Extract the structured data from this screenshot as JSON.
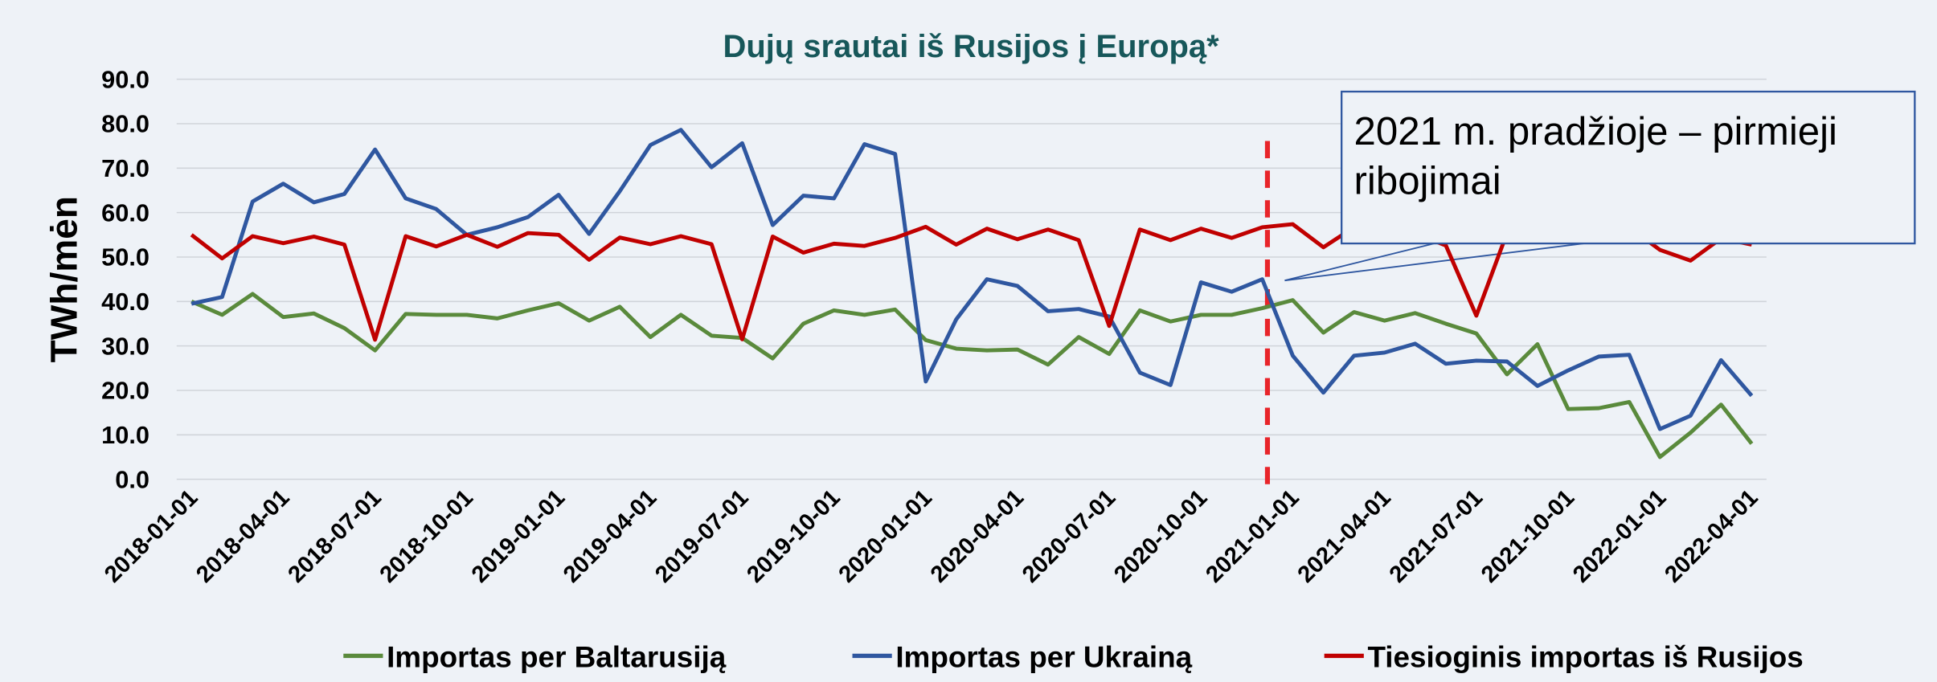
{
  "chart_data": {
    "type": "line",
    "title": "Dujų srautai iš Rusijos į Europą*",
    "ylabel": "TWh/mėn",
    "annotation": "2021 m. pradžioje – pirmieji ribojimai",
    "categories": [
      "2018-01-01",
      null,
      null,
      "2018-04-01",
      null,
      null,
      "2018-07-01",
      null,
      null,
      "2018-10-01",
      null,
      null,
      "2019-01-01",
      null,
      null,
      "2019-04-01",
      null,
      null,
      "2019-07-01",
      null,
      null,
      "2019-10-01",
      null,
      null,
      "2020-01-01",
      null,
      null,
      "2020-04-01",
      null,
      null,
      "2020-07-01",
      null,
      null,
      "2020-10-01",
      null,
      null,
      "2021-01-01",
      null,
      null,
      "2021-04-01",
      null,
      null,
      "2021-07-01",
      null,
      null,
      "2021-10-01",
      null,
      null,
      "2022-01-01",
      null,
      null,
      "2022-04-01"
    ],
    "series": [
      {
        "name": "Importas per Baltarusiją",
        "color": "#5a8a3c",
        "values": [
          40,
          37,
          41.7,
          36.5,
          37.3,
          34,
          29,
          37.2,
          37,
          37,
          36.2,
          38,
          39.6,
          35.7,
          38.8,
          32,
          37,
          32.3,
          31.8,
          27.2,
          35,
          38,
          37,
          38.2,
          31.3,
          29.4,
          29,
          29.2,
          25.8,
          32,
          28.2,
          38,
          35.5,
          37,
          37,
          38.5,
          40.3,
          33,
          37.6,
          35.7,
          37.4,
          35,
          32.8,
          23.6,
          30.4,
          15.8,
          16,
          17.4,
          5,
          10.5,
          16.8,
          8
        ]
      },
      {
        "name": "Importas per Ukrainą",
        "color": "#2f57a0",
        "values": [
          39.5,
          41,
          62.5,
          66.5,
          62.3,
          64.2,
          74.2,
          63.2,
          60.8,
          55,
          56.7,
          59,
          64,
          55.2,
          64.8,
          75.2,
          78.6,
          70.2,
          75.6,
          57.2,
          63.8,
          63.2,
          75.4,
          73.2,
          22,
          36,
          45,
          43.5,
          37.8,
          38.3,
          36.6,
          24,
          21.2,
          44.3,
          42.2,
          45,
          27.8,
          19.5,
          27.8,
          28.5,
          30.5,
          26,
          26.7,
          26.5,
          21,
          24.5,
          27.6,
          28,
          11.3,
          14.3,
          26.8,
          18.8
        ]
      },
      {
        "name": "Tiesioginis importas iš Rusijos",
        "color": "#c00000",
        "values": [
          55,
          49.7,
          54.7,
          53.1,
          54.6,
          52.8,
          31.4,
          54.7,
          52.4,
          55,
          52.3,
          55.4,
          55,
          49.4,
          54.4,
          52.9,
          54.7,
          52.9,
          31.5,
          54.6,
          51,
          53,
          52.5,
          54.3,
          56.8,
          52.8,
          56.4,
          54,
          56.2,
          53.8,
          34.5,
          56.2,
          53.8,
          56.4,
          54.3,
          56.7,
          57.4,
          52.2,
          56.7,
          53.8,
          55.3,
          52.6,
          36.8,
          55.4,
          53.8,
          55.5,
          53.6,
          56.7,
          51.6,
          49.2,
          54.2,
          52.8
        ]
      }
    ],
    "ylim": [
      0,
      90
    ],
    "yticks": [
      {
        "value": 0,
        "label": "0.0"
      },
      {
        "value": 10,
        "label": "10.0"
      },
      {
        "value": 20,
        "label": "20.0"
      },
      {
        "value": 30,
        "label": "30.0"
      },
      {
        "value": 40,
        "label": "40.0"
      },
      {
        "value": 50,
        "label": "50.0"
      },
      {
        "value": 60,
        "label": "60.0"
      },
      {
        "value": 70,
        "label": "70.0"
      },
      {
        "value": 80,
        "label": "80.0"
      },
      {
        "value": 90,
        "label": "90.0"
      }
    ],
    "grid": true,
    "legend": "bottom"
  }
}
